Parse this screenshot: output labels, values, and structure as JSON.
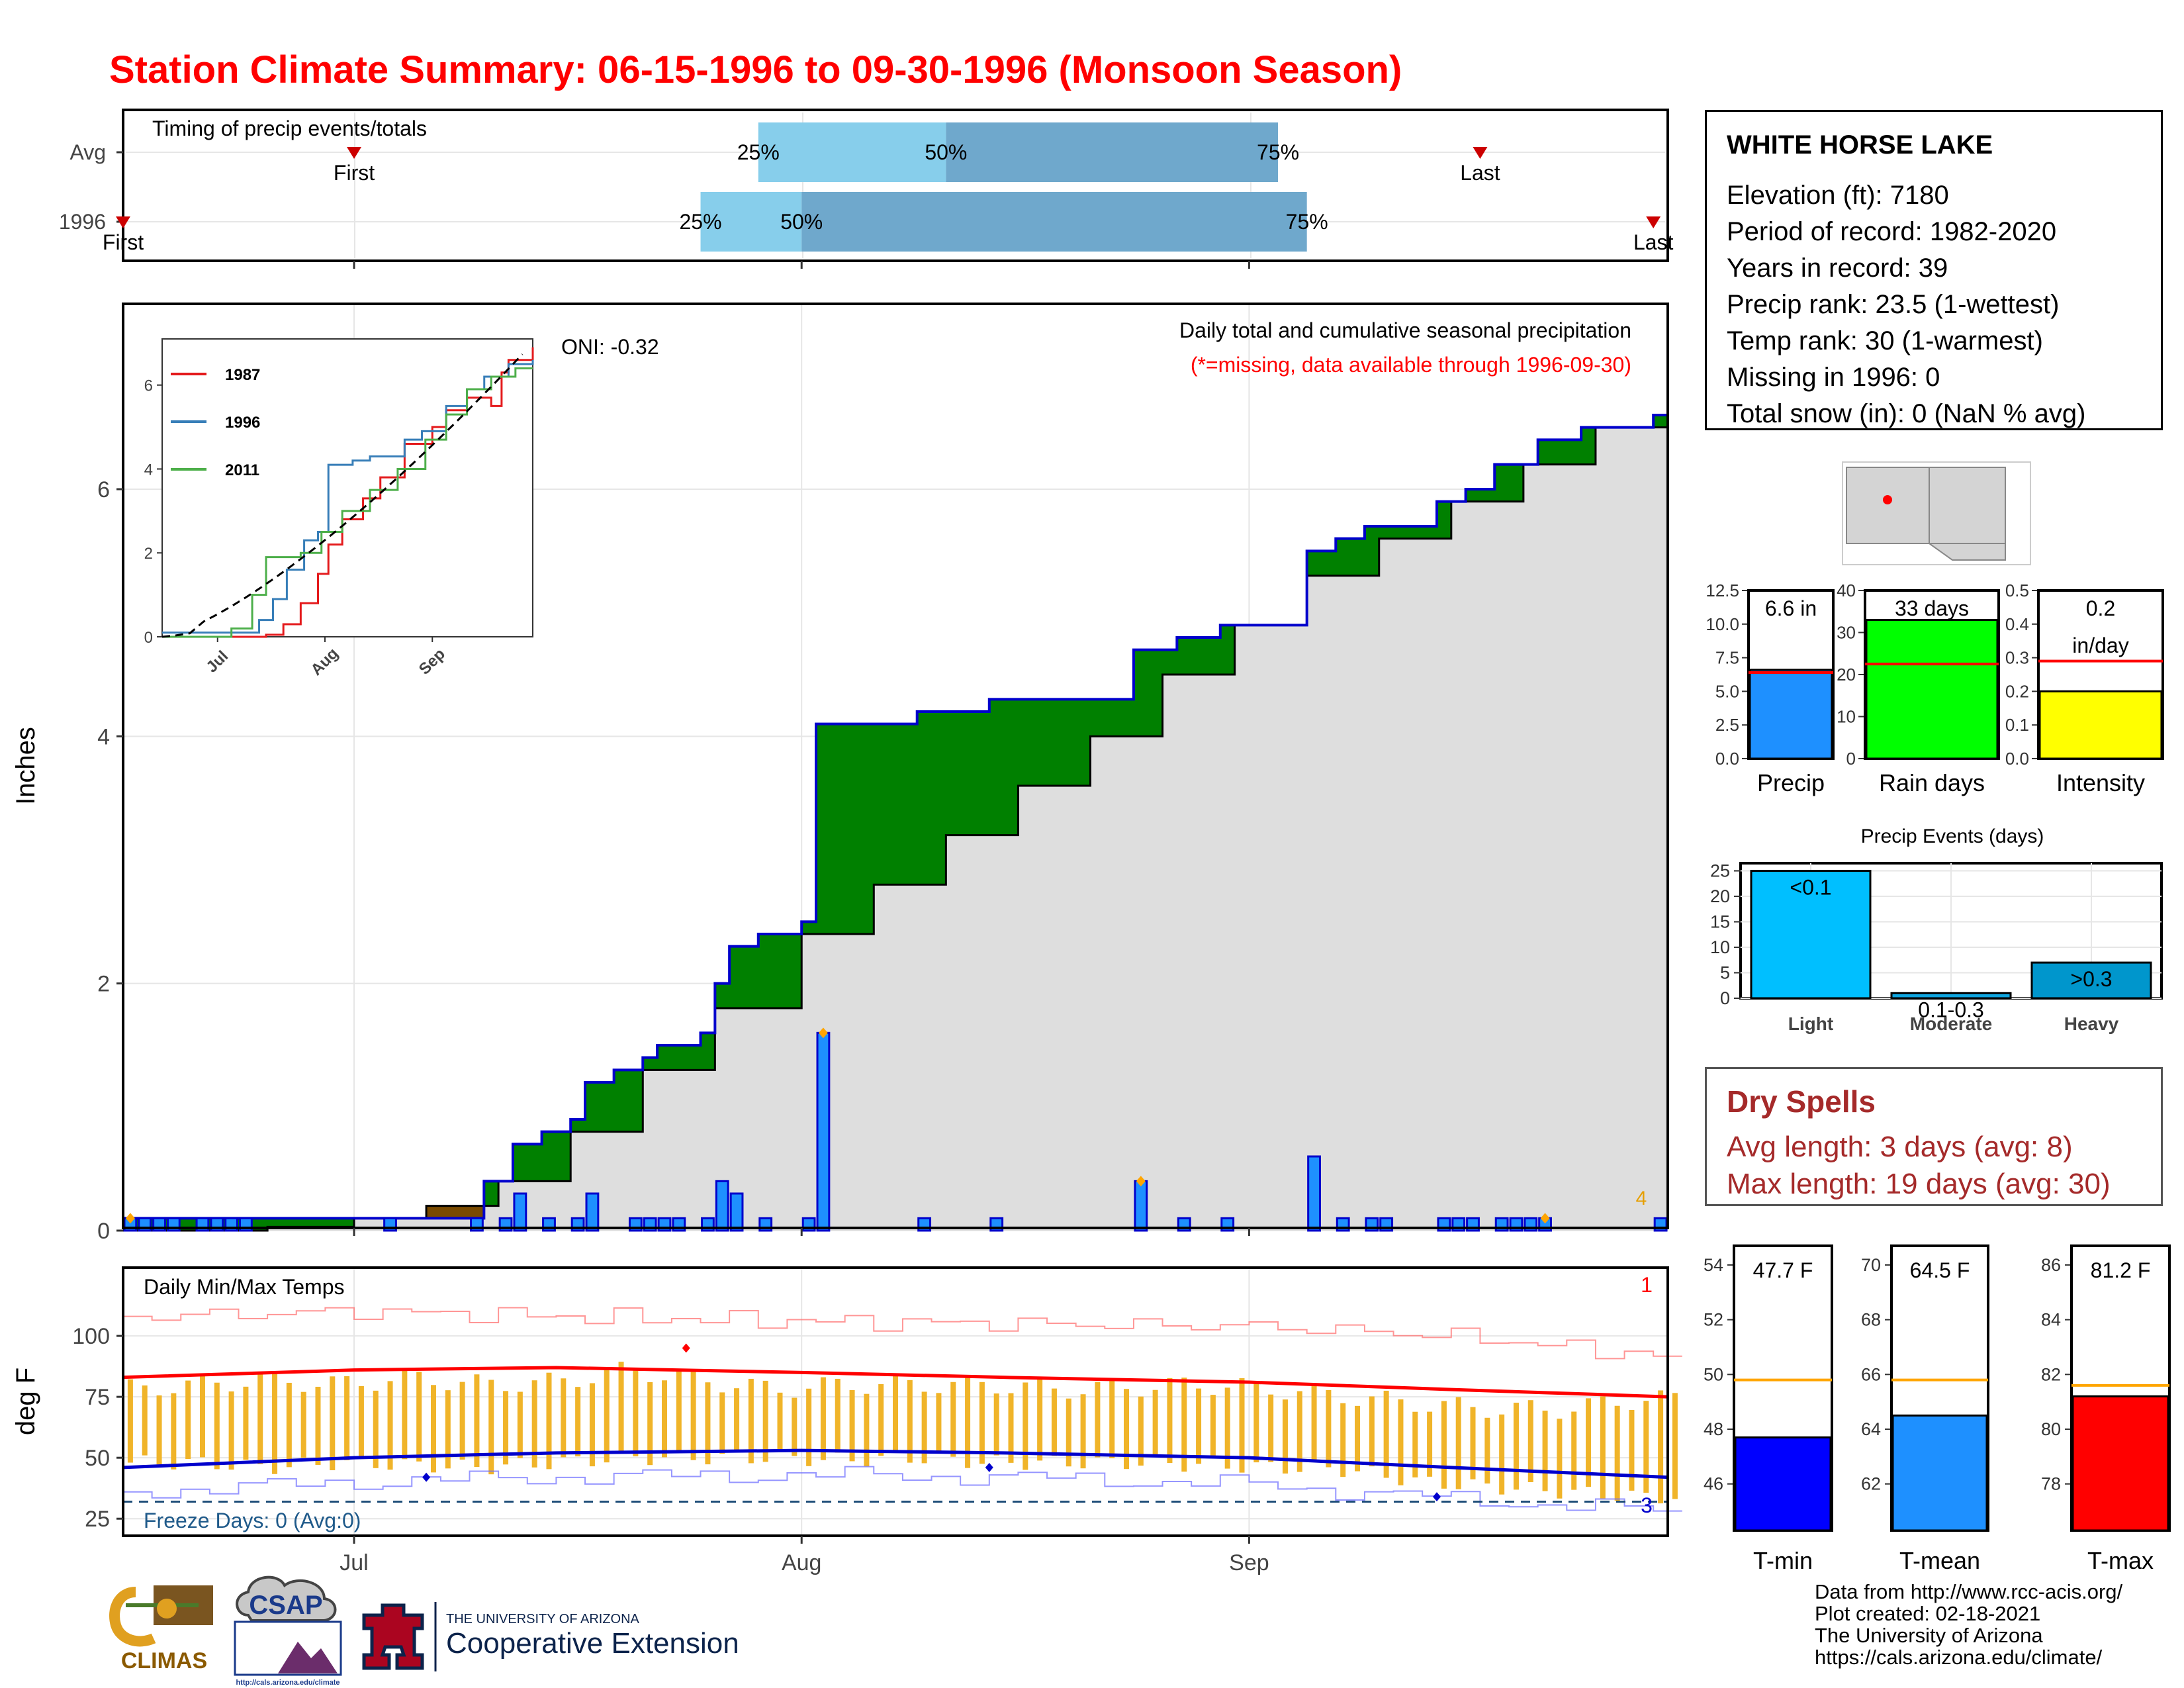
{
  "title": "Station Climate Summary: 06-15-1996 to 09-30-1996 (Monsoon Season)",
  "timing": {
    "title": "Timing of precip events/totals",
    "rows": [
      {
        "label": "Avg",
        "first_date": "1996-07-01",
        "last_date": "1996-09-17",
        "q25": "1996-07-29",
        "q50": "1996-08-11",
        "q75": "1996-09-03",
        "first_label": "First",
        "last_label": "Last"
      },
      {
        "label": "1996",
        "first_date": "1996-06-15",
        "last_date": "1996-09-29",
        "q25": "1996-07-25",
        "q50": "1996-08-01",
        "q75": "1996-09-05",
        "first_label": "First",
        "last_label": "Last"
      }
    ],
    "pct_labels": [
      "25%",
      "50%",
      "75%"
    ],
    "colors": {
      "lower": "#87ceeb",
      "upper": "#6fa8cc",
      "marker": "#cc0000"
    }
  },
  "precip_panel": {
    "ylabel": "Inches",
    "header": "Daily total and cumulative seasonal precipitation",
    "note": "(*=missing, data available through 1996-09-30)",
    "oni": "ONI: -0.32",
    "max_days_label": "4",
    "yticks": [
      0,
      2,
      4,
      6
    ],
    "ylim": [
      0,
      7.5
    ]
  },
  "inset": {
    "legend": [
      {
        "name": "1987",
        "color": "#e41a1c"
      },
      {
        "name": "1996",
        "color": "#377eb8"
      },
      {
        "name": "2011",
        "color": "#4daf4a"
      }
    ],
    "yticks": [
      0,
      2,
      4,
      6
    ],
    "xticks": [
      "Jul",
      "Aug",
      "Sep"
    ]
  },
  "temp_panel": {
    "title": "Daily Min/Max Temps",
    "ylabel": "deg F",
    "yticks": [
      25,
      50,
      75,
      100
    ],
    "freeze": "Freeze Days: 0 (Avg:0)",
    "max_count": "1",
    "min_count": "3",
    "freeze_line": 32
  },
  "x_axis": {
    "ticks": [
      "Jul",
      "Aug",
      "Sep"
    ]
  },
  "station": {
    "name": "WHITE HORSE LAKE",
    "lines": [
      "Elevation (ft): 7180",
      "Period of record: 1982-2020",
      "Years in record: 39",
      "Precip rank: 23.5 (1-wettest)",
      "Temp rank: 30 (1-warmest)",
      "Missing in 1996: 0",
      "Total snow (in): 0 (NaN % avg)"
    ]
  },
  "summary_bars": [
    {
      "label": "Precip",
      "value_label": "6.6 in",
      "value": 6.6,
      "avg": 6.4,
      "ylim": [
        0,
        12.5
      ],
      "yticks": [
        "0.0",
        "2.5",
        "5.0",
        "7.5",
        "10.0",
        "12.5"
      ],
      "color": "#1e90ff"
    },
    {
      "label": "Rain days",
      "value_label": "33 days",
      "value": 33,
      "avg": 22.5,
      "ylim": [
        0,
        40
      ],
      "yticks": [
        "0",
        "10",
        "20",
        "30",
        "40"
      ],
      "color": "#00ff00"
    },
    {
      "label": "Intensity",
      "value_label": "0.2",
      "value_label2": "in/day",
      "value": 0.2,
      "avg": 0.29,
      "ylim": [
        0,
        0.5
      ],
      "yticks": [
        "0.0",
        "0.1",
        "0.2",
        "0.3",
        "0.4",
        "0.5"
      ],
      "color": "#ffff00"
    }
  ],
  "precip_events": {
    "title": "Precip Events (days)",
    "categories": [
      "Light",
      "Moderate",
      "Heavy"
    ],
    "values": [
      25,
      1,
      7
    ],
    "bar_labels": [
      "<0.1",
      "0.1-0.3",
      ">0.3"
    ],
    "colors": [
      "#00bfff",
      "#0ea5e0",
      "#0096cc"
    ],
    "yticks": [
      "0",
      "5",
      "10",
      "15",
      "20",
      "25"
    ]
  },
  "dry_spells": {
    "title": "Dry Spells",
    "lines": [
      "Avg length: 3 days (avg: 8)",
      "Max length: 19 days (avg: 30)"
    ]
  },
  "temp_bars": [
    {
      "label": "T-min",
      "value_label": "47.7 F",
      "value": 47.7,
      "avg": 49.8,
      "ylim": [
        44.3,
        54.7
      ],
      "yticks": [
        46,
        48,
        50,
        52,
        54
      ],
      "color": "#0000ff"
    },
    {
      "label": "T-mean",
      "value_label": "64.5 F",
      "value": 64.5,
      "avg": 65.8,
      "ylim": [
        60.3,
        70.7
      ],
      "yticks": [
        62,
        64,
        66,
        68,
        70
      ],
      "color": "#1e90ff"
    },
    {
      "label": "T-max",
      "value_label": "81.2 F",
      "value": 81.2,
      "avg": 81.6,
      "ylim": [
        76.3,
        86.7
      ],
      "yticks": [
        78,
        80,
        82,
        84,
        86
      ],
      "color": "#ff0000"
    }
  ],
  "logos": {
    "climas": "CLIMAS",
    "csap": "CSAP",
    "csap_url": "http://cals.arizona.edu/climate",
    "ua_small": "THE UNIVERSITY OF ARIZONA",
    "ua_ext": "Cooperative Extension"
  },
  "footer": [
    "Data from http://www.rcc-acis.org/",
    "Plot created: 02-18-2021",
    "The University of Arizona",
    "https://cals.arizona.edu/climate/"
  ],
  "chart_data": [
    {
      "type": "bar",
      "title": "Daily total and cumulative seasonal precipitation",
      "ylabel": "Inches",
      "x_unit": "date",
      "series": [
        {
          "name": "daily precip",
          "points": [
            [
              "1996-06-15",
              0.1
            ],
            [
              "1996-06-16",
              0.1
            ],
            [
              "1996-06-17",
              0.1
            ],
            [
              "1996-06-18",
              0.1
            ],
            [
              "1996-06-20",
              0.1
            ],
            [
              "1996-06-21",
              0.1
            ],
            [
              "1996-06-22",
              0.1
            ],
            [
              "1996-06-23",
              0.1
            ],
            [
              "1996-07-03",
              0.1
            ],
            [
              "1996-07-09",
              0.1
            ],
            [
              "1996-07-11",
              0.1
            ],
            [
              "1996-07-12",
              0.3
            ],
            [
              "1996-07-14",
              0.1
            ],
            [
              "1996-07-16",
              0.1
            ],
            [
              "1996-07-17",
              0.3
            ],
            [
              "1996-07-20",
              0.1
            ],
            [
              "1996-07-21",
              0.1
            ],
            [
              "1996-07-22",
              0.1
            ],
            [
              "1996-07-23",
              0.1
            ],
            [
              "1996-07-25",
              0.1
            ],
            [
              "1996-07-26",
              0.4
            ],
            [
              "1996-07-27",
              0.3
            ],
            [
              "1996-07-29",
              0.1
            ],
            [
              "1996-08-01",
              0.1
            ],
            [
              "1996-08-02",
              1.6
            ],
            [
              "1996-08-09",
              0.1
            ],
            [
              "1996-08-14",
              0.1
            ],
            [
              "1996-08-24",
              0.4
            ],
            [
              "1996-08-27",
              0.1
            ],
            [
              "1996-08-30",
              0.1
            ],
            [
              "1996-09-05",
              0.6
            ],
            [
              "1996-09-07",
              0.1
            ],
            [
              "1996-09-09",
              0.1
            ],
            [
              "1996-09-10",
              0.1
            ],
            [
              "1996-09-14",
              0.1
            ],
            [
              "1996-09-15",
              0.1
            ],
            [
              "1996-09-16",
              0.1
            ],
            [
              "1996-09-18",
              0.1
            ],
            [
              "1996-09-19",
              0.1
            ],
            [
              "1996-09-20",
              0.1
            ],
            [
              "1996-09-21",
              0.1
            ],
            [
              "1996-09-29",
              0.1
            ]
          ]
        },
        {
          "name": "cumulative 1996",
          "points": [
            [
              "1996-06-15",
              0.1
            ],
            [
              "1996-06-29",
              0.1
            ],
            [
              "1996-07-03",
              0.1
            ],
            [
              "1996-07-09",
              0.1
            ],
            [
              "1996-07-10",
              0.4
            ],
            [
              "1996-07-12",
              0.7
            ],
            [
              "1996-07-14",
              0.8
            ],
            [
              "1996-07-16",
              0.9
            ],
            [
              "1996-07-17",
              1.2
            ],
            [
              "1996-07-19",
              1.3
            ],
            [
              "1996-07-21",
              1.4
            ],
            [
              "1996-07-22",
              1.5
            ],
            [
              "1996-07-25",
              1.6
            ],
            [
              "1996-07-26",
              2.0
            ],
            [
              "1996-07-27",
              2.3
            ],
            [
              "1996-07-29",
              2.4
            ],
            [
              "1996-08-01",
              2.5
            ],
            [
              "1996-08-02",
              4.1
            ],
            [
              "1996-08-09",
              4.2
            ],
            [
              "1996-08-14",
              4.3
            ],
            [
              "1996-08-24",
              4.7
            ],
            [
              "1996-08-27",
              4.8
            ],
            [
              "1996-08-30",
              4.9
            ],
            [
              "1996-09-05",
              5.5
            ],
            [
              "1996-09-07",
              5.6
            ],
            [
              "1996-09-09",
              5.7
            ],
            [
              "1996-09-14",
              5.9
            ],
            [
              "1996-09-16",
              6.0
            ],
            [
              "1996-09-18",
              6.2
            ],
            [
              "1996-09-21",
              6.4
            ],
            [
              "1996-09-24",
              6.5
            ],
            [
              "1996-09-29",
              6.6
            ],
            [
              "1996-09-30",
              6.6
            ]
          ]
        },
        {
          "name": "cumulative avg",
          "points": [
            [
              "1996-06-15",
              0.0
            ],
            [
              "1996-06-25",
              0.03
            ],
            [
              "1996-07-01",
              0.1
            ],
            [
              "1996-07-06",
              0.2
            ],
            [
              "1996-07-11",
              0.4
            ],
            [
              "1996-07-16",
              0.8
            ],
            [
              "1996-07-21",
              1.3
            ],
            [
              "1996-07-26",
              1.8
            ],
            [
              "1996-08-01",
              2.4
            ],
            [
              "1996-08-06",
              2.8
            ],
            [
              "1996-08-11",
              3.2
            ],
            [
              "1996-08-16",
              3.6
            ],
            [
              "1996-08-21",
              4.0
            ],
            [
              "1996-08-26",
              4.5
            ],
            [
              "1996-08-31",
              4.9
            ],
            [
              "1996-09-05",
              5.3
            ],
            [
              "1996-09-10",
              5.6
            ],
            [
              "1996-09-15",
              5.9
            ],
            [
              "1996-09-20",
              6.2
            ],
            [
              "1996-09-25",
              6.5
            ],
            [
              "1996-09-30",
              6.8
            ]
          ]
        }
      ]
    },
    {
      "type": "line",
      "title": "Daily Min/Max Temps",
      "ylabel": "deg F",
      "series": [
        {
          "name": "avg max",
          "points": [
            [
              "1996-06-15",
              83
            ],
            [
              "1996-07-01",
              86
            ],
            [
              "1996-07-15",
              87
            ],
            [
              "1996-08-01",
              85
            ],
            [
              "1996-08-15",
              83
            ],
            [
              "1996-09-01",
              81
            ],
            [
              "1996-09-15",
              78
            ],
            [
              "1996-09-30",
              75
            ]
          ]
        },
        {
          "name": "avg min",
          "points": [
            [
              "1996-06-15",
              46
            ],
            [
              "1996-07-01",
              50
            ],
            [
              "1996-07-15",
              52
            ],
            [
              "1996-08-01",
              53
            ],
            [
              "1996-08-15",
              52
            ],
            [
              "1996-09-01",
              50
            ],
            [
              "1996-09-15",
              46
            ],
            [
              "1996-09-30",
              42
            ]
          ]
        },
        {
          "name": "record max",
          "points": [
            [
              "1996-06-15",
              108
            ],
            [
              "1996-07-01",
              110
            ],
            [
              "1996-07-15",
              108
            ],
            [
              "1996-08-01",
              106
            ],
            [
              "1996-08-15",
              105
            ],
            [
              "1996-09-01",
              104
            ],
            [
              "1996-09-15",
              100
            ],
            [
              "1996-09-30",
              91
            ]
          ]
        },
        {
          "name": "record min",
          "points": [
            [
              "1996-06-15",
              36
            ],
            [
              "1996-07-01",
              40
            ],
            [
              "1996-07-15",
              42
            ],
            [
              "1996-08-01",
              43
            ],
            [
              "1996-08-15",
              42
            ],
            [
              "1996-09-01",
              39
            ],
            [
              "1996-09-15",
              33
            ],
            [
              "1996-09-30",
              28
            ]
          ]
        }
      ],
      "daily_range": {
        "name": "1996 daily min-max",
        "color": "#f0b429",
        "points": [
          [
            "1996-06-15",
            48,
            78
          ],
          [
            "1996-06-20",
            48,
            80
          ],
          [
            "1996-06-25",
            46,
            82
          ],
          [
            "1996-06-30",
            48,
            80
          ],
          [
            "1996-07-05",
            47,
            83
          ],
          [
            "1996-07-10",
            46,
            80
          ],
          [
            "1996-07-15",
            48,
            81
          ],
          [
            "1996-07-20",
            50,
            86
          ],
          [
            "1996-07-25",
            50,
            82
          ],
          [
            "1996-07-30",
            50,
            78
          ],
          [
            "1996-08-04",
            49,
            80
          ],
          [
            "1996-08-09",
            50,
            80
          ],
          [
            "1996-08-14",
            48,
            80
          ],
          [
            "1996-08-19",
            48,
            78
          ],
          [
            "1996-08-24",
            48,
            79
          ],
          [
            "1996-08-29",
            47,
            80
          ],
          [
            "1996-09-03",
            46,
            78
          ],
          [
            "1996-09-08",
            45,
            75
          ],
          [
            "1996-09-13",
            40,
            72
          ],
          [
            "1996-09-18",
            38,
            70
          ],
          [
            "1996-09-23",
            36,
            70
          ],
          [
            "1996-09-28",
            34,
            74
          ]
        ]
      }
    },
    {
      "type": "bar",
      "title": "Precip Events (days)",
      "categories": [
        "Light",
        "Moderate",
        "Heavy"
      ],
      "values": [
        25,
        1,
        7
      ]
    }
  ]
}
